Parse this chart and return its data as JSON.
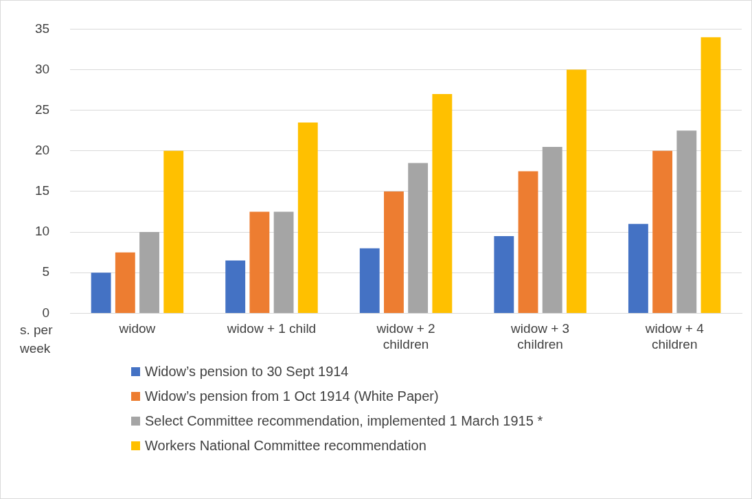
{
  "chart_data": {
    "type": "bar",
    "ylabel": "s. per week",
    "categories": [
      "widow",
      "widow + 1 child",
      "widow + 2 children",
      "widow + 3 children",
      "widow + 4 children"
    ],
    "series": [
      {
        "name": "Widow’s pension to 30 Sept 1914",
        "color": "#4472c4",
        "values": [
          5,
          6.5,
          8,
          9.5,
          11
        ]
      },
      {
        "name": "Widow’s pension from 1 Oct 1914 (White Paper)",
        "color": "#ed7d31",
        "values": [
          7.5,
          12.5,
          15,
          17.5,
          20
        ]
      },
      {
        "name": "Select Committee recommendation, implemented 1 March 1915 *",
        "color": "#a5a5a5",
        "values": [
          10,
          12.5,
          18.5,
          20.5,
          22.5
        ]
      },
      {
        "name": "Workers National Committee recommendation",
        "color": "#ffc000",
        "values": [
          20,
          23.5,
          27,
          30,
          34
        ]
      }
    ],
    "ylim": [
      0,
      35
    ],
    "yticks": [
      0,
      5,
      10,
      15,
      20,
      25,
      30,
      35
    ],
    "grid": "y",
    "legend": "bottom"
  }
}
